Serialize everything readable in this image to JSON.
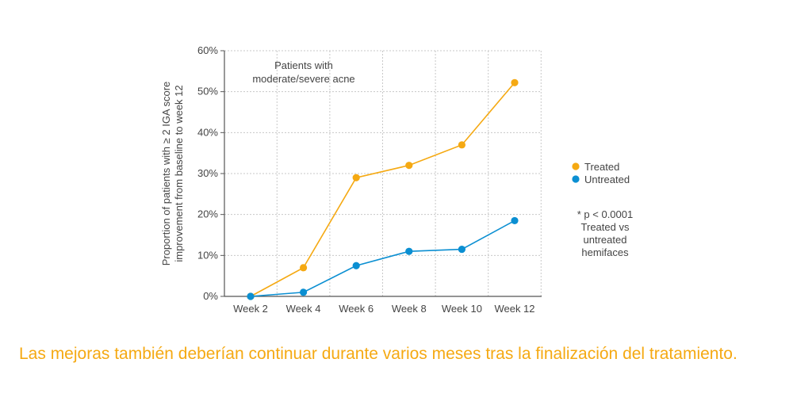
{
  "chart_data": {
    "type": "line",
    "categories": [
      "Week 2",
      "Week 4",
      "Week 6",
      "Week 8",
      "Week 10",
      "Week 12"
    ],
    "series": [
      {
        "name": "Treated",
        "color": "#f5a912",
        "values": [
          0,
          7,
          29,
          32,
          37,
          52.2
        ]
      },
      {
        "name": "Untreated",
        "color": "#0b8fd2",
        "values": [
          0,
          1,
          7.5,
          11,
          11.5,
          18.5
        ]
      }
    ],
    "ylim": [
      0,
      60
    ],
    "yticks": [
      0,
      10,
      20,
      30,
      40,
      50,
      60
    ],
    "ytick_labels": [
      "0%",
      "10%",
      "20%",
      "30%",
      "40%",
      "50%",
      "60%"
    ],
    "ylabel_line1": "Proportion of patients with ≥ 2 IGA score",
    "ylabel_line2": "improvement from baseline to week 12",
    "xlabel": "",
    "annotation_line1": "Patients with",
    "annotation_line2": "moderate/severe acne",
    "legend_position": "right",
    "note_lines": [
      "* p < 0.0001",
      "Treated vs",
      "untreated",
      "hemifaces"
    ],
    "grid": true
  },
  "caption": "Las mejoras también deberían continuar durante varios meses tras la finalización del tratamiento."
}
